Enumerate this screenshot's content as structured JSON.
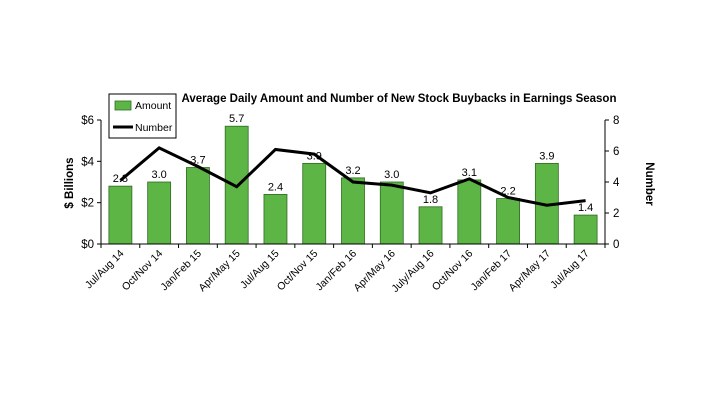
{
  "chart_data": {
    "type": "bar",
    "title": "Average Daily Amount and Number of New Stock Buybacks in Earnings Season",
    "categories": [
      "Jul/Aug 14",
      "Oct/Nov 14",
      "Jan/Feb 15",
      "Apr/May 15",
      "Jul/Aug 15",
      "Oct/Nov 15",
      "Jan/Feb 16",
      "Apr/May 16",
      "July/Aug 16",
      "Oct/Nov 16",
      "Jan/Feb 17",
      "Apr/May 17",
      "Jul/Aug 17"
    ],
    "series": [
      {
        "name": "Amount",
        "type": "bar",
        "axis": "left",
        "values": [
          2.8,
          3.0,
          3.7,
          5.7,
          2.4,
          3.9,
          3.2,
          3.0,
          1.8,
          3.1,
          2.2,
          3.9,
          1.4
        ],
        "labels": [
          "2.8",
          "3.0",
          "3.7",
          "5.7",
          "2.4",
          "3.9",
          "3.2",
          "3.0",
          "1.8",
          "3.1",
          "2.2",
          "3.9",
          "1.4"
        ]
      },
      {
        "name": "Number",
        "type": "line",
        "axis": "right",
        "values": [
          4.1,
          6.2,
          5.0,
          3.7,
          6.1,
          5.8,
          4.0,
          3.8,
          3.3,
          4.2,
          3.0,
          2.5,
          2.8
        ]
      }
    ],
    "ylabel": "$ Billions",
    "y2label": "Number",
    "ylim": [
      0,
      6
    ],
    "y2lim": [
      0,
      8
    ],
    "yticks": [
      "$0",
      "$2",
      "$4",
      "$6"
    ],
    "y2ticks": [
      "0",
      "2",
      "4",
      "6",
      "8"
    ],
    "legend_position": "top-left",
    "grid": false,
    "colors": {
      "bar_fill": "#5cb545",
      "bar_stroke": "#2f6b22",
      "line": "#000000"
    }
  }
}
